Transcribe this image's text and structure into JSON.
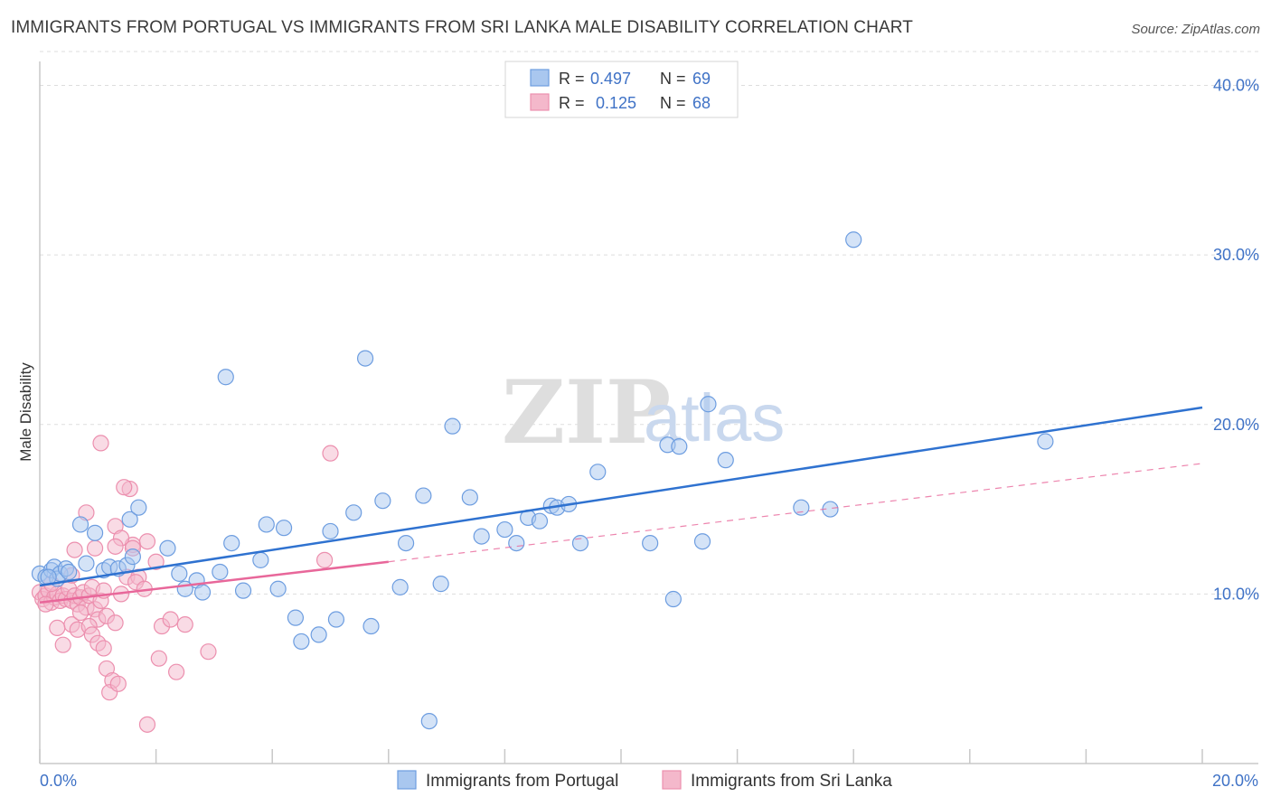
{
  "header": {
    "title": "IMMIGRANTS FROM PORTUGAL VS IMMIGRANTS FROM SRI LANKA MALE DISABILITY CORRELATION CHART",
    "source": "Source: ZipAtlas.com"
  },
  "watermark": {
    "zip": "ZIP",
    "atlas": "atlas"
  },
  "colors": {
    "blue_fill": "#a9c7ef",
    "blue_stroke": "#6d9de0",
    "blue_line": "#2f72d0",
    "pink_fill": "#f4b8cb",
    "pink_stroke": "#ec8fae",
    "pink_line": "#e8679a",
    "tick_text": "#3f72c6",
    "grid": "#dddddd"
  },
  "chart_data": {
    "type": "scatter",
    "title": "IMMIGRANTS FROM PORTUGAL VS IMMIGRANTS FROM SRI LANKA MALE DISABILITY CORRELATION CHART",
    "xlabel": "",
    "ylabel": "Male Disability",
    "xlim": [
      0,
      20
    ],
    "ylim": [
      0,
      42
    ],
    "x_tick_labels": [
      "0.0%",
      "20.0%"
    ],
    "y_ticks": [
      10,
      20,
      30,
      40
    ],
    "y_tick_labels": [
      "10.0%",
      "20.0%",
      "30.0%",
      "40.0%"
    ],
    "grid": true,
    "legend": {
      "position": "top-center",
      "entries": [
        {
          "r_label": "R =",
          "r_value": "0.497",
          "n_label": "N =",
          "n_value": "69"
        },
        {
          "r_label": "R =",
          "r_value": "0.125",
          "n_label": "N =",
          "n_value": "68"
        }
      ]
    },
    "series": [
      {
        "name": "Immigrants from Portugal",
        "color": "#6d9de0",
        "trend": {
          "x": [
            0,
            20
          ],
          "y": [
            10.5,
            21.0
          ],
          "style": "solid"
        },
        "points": [
          [
            0.0,
            11.2
          ],
          [
            0.1,
            11.0
          ],
          [
            0.2,
            11.4
          ],
          [
            0.25,
            11.6
          ],
          [
            0.3,
            10.9
          ],
          [
            0.35,
            11.2
          ],
          [
            0.45,
            11.5
          ],
          [
            0.5,
            11.3
          ],
          [
            0.7,
            14.1
          ],
          [
            0.8,
            11.8
          ],
          [
            0.95,
            13.6
          ],
          [
            1.1,
            11.4
          ],
          [
            1.2,
            11.6
          ],
          [
            1.35,
            11.5
          ],
          [
            1.5,
            11.7
          ],
          [
            1.55,
            14.4
          ],
          [
            1.7,
            15.1
          ],
          [
            2.2,
            12.7
          ],
          [
            2.4,
            11.2
          ],
          [
            2.7,
            10.8
          ],
          [
            2.8,
            10.1
          ],
          [
            3.1,
            11.3
          ],
          [
            3.3,
            13.0
          ],
          [
            3.5,
            10.2
          ],
          [
            3.8,
            12.0
          ],
          [
            3.9,
            14.1
          ],
          [
            4.1,
            10.3
          ],
          [
            4.2,
            13.9
          ],
          [
            4.4,
            8.6
          ],
          [
            4.5,
            7.2
          ],
          [
            4.8,
            7.6
          ],
          [
            5.0,
            13.7
          ],
          [
            5.1,
            8.5
          ],
          [
            5.4,
            14.8
          ],
          [
            5.7,
            8.1
          ],
          [
            5.9,
            15.5
          ],
          [
            6.2,
            10.4
          ],
          [
            6.3,
            13.0
          ],
          [
            6.6,
            15.8
          ],
          [
            6.7,
            2.5
          ],
          [
            6.9,
            10.6
          ],
          [
            7.1,
            19.9
          ],
          [
            7.4,
            15.7
          ],
          [
            7.6,
            13.4
          ],
          [
            8.0,
            13.8
          ],
          [
            8.2,
            13.0
          ],
          [
            8.4,
            14.5
          ],
          [
            8.6,
            14.3
          ],
          [
            8.8,
            15.2
          ],
          [
            8.9,
            15.1
          ],
          [
            9.1,
            15.3
          ],
          [
            9.3,
            13.0
          ],
          [
            9.6,
            17.2
          ],
          [
            10.5,
            13.0
          ],
          [
            10.8,
            18.8
          ],
          [
            11.0,
            18.7
          ],
          [
            11.4,
            13.1
          ],
          [
            11.5,
            21.2
          ],
          [
            11.8,
            17.9
          ],
          [
            13.1,
            15.1
          ],
          [
            13.6,
            15.0
          ],
          [
            14.0,
            30.9
          ],
          [
            17.3,
            19.0
          ],
          [
            10.9,
            9.7
          ],
          [
            3.2,
            22.8
          ],
          [
            5.6,
            23.9
          ],
          [
            0.15,
            11.0
          ],
          [
            1.6,
            12.2
          ],
          [
            2.5,
            10.3
          ]
        ]
      },
      {
        "name": "Immigrants from Sri Lanka",
        "color": "#ec8fae",
        "trend": {
          "x": [
            0,
            6
          ],
          "y": [
            9.5,
            11.9
          ],
          "style": "solid",
          "dashed_extension": {
            "x": [
              6,
              20
            ],
            "y": [
              11.9,
              17.7
            ]
          }
        },
        "points": [
          [
            0.0,
            10.1
          ],
          [
            0.05,
            9.7
          ],
          [
            0.1,
            9.9
          ],
          [
            0.15,
            10.2
          ],
          [
            0.2,
            9.5
          ],
          [
            0.25,
            9.8
          ],
          [
            0.3,
            10.0
          ],
          [
            0.35,
            9.6
          ],
          [
            0.4,
            9.9
          ],
          [
            0.45,
            9.7
          ],
          [
            0.5,
            10.3
          ],
          [
            0.55,
            9.6
          ],
          [
            0.6,
            9.9
          ],
          [
            0.65,
            9.4
          ],
          [
            0.7,
            9.8
          ],
          [
            0.75,
            10.1
          ],
          [
            0.8,
            9.2
          ],
          [
            0.85,
            9.9
          ],
          [
            0.9,
            10.4
          ],
          [
            0.95,
            9.1
          ],
          [
            1.0,
            8.5
          ],
          [
            1.05,
            9.6
          ],
          [
            1.1,
            10.2
          ],
          [
            1.15,
            8.7
          ],
          [
            0.4,
            7.0
          ],
          [
            0.55,
            8.2
          ],
          [
            0.65,
            7.9
          ],
          [
            0.7,
            8.9
          ],
          [
            0.85,
            8.1
          ],
          [
            0.9,
            7.6
          ],
          [
            1.0,
            7.1
          ],
          [
            1.1,
            6.8
          ],
          [
            1.15,
            5.6
          ],
          [
            1.3,
            8.3
          ],
          [
            1.4,
            10.0
          ],
          [
            1.5,
            11.0
          ],
          [
            1.6,
            12.9
          ],
          [
            1.7,
            11.0
          ],
          [
            1.85,
            13.1
          ],
          [
            2.0,
            11.9
          ],
          [
            2.1,
            8.1
          ],
          [
            2.25,
            8.5
          ],
          [
            2.35,
            5.4
          ],
          [
            2.5,
            8.2
          ],
          [
            1.25,
            4.9
          ],
          [
            1.2,
            4.2
          ],
          [
            1.35,
            4.7
          ],
          [
            1.85,
            2.3
          ],
          [
            1.05,
            18.9
          ],
          [
            1.55,
            16.2
          ],
          [
            1.45,
            16.3
          ],
          [
            1.3,
            14.0
          ],
          [
            0.8,
            14.8
          ],
          [
            1.4,
            13.3
          ],
          [
            1.6,
            12.7
          ],
          [
            1.65,
            10.7
          ],
          [
            1.8,
            10.3
          ],
          [
            2.05,
            6.2
          ],
          [
            2.9,
            6.6
          ],
          [
            4.9,
            12.0
          ],
          [
            5.0,
            18.3
          ],
          [
            0.3,
            8.0
          ],
          [
            0.55,
            11.1
          ],
          [
            0.6,
            12.6
          ],
          [
            0.95,
            12.7
          ],
          [
            1.3,
            12.8
          ],
          [
            0.2,
            10.6
          ],
          [
            0.1,
            9.4
          ]
        ]
      }
    ],
    "bottom_legend": [
      "Immigrants from Portugal",
      "Immigrants from Sri Lanka"
    ]
  }
}
